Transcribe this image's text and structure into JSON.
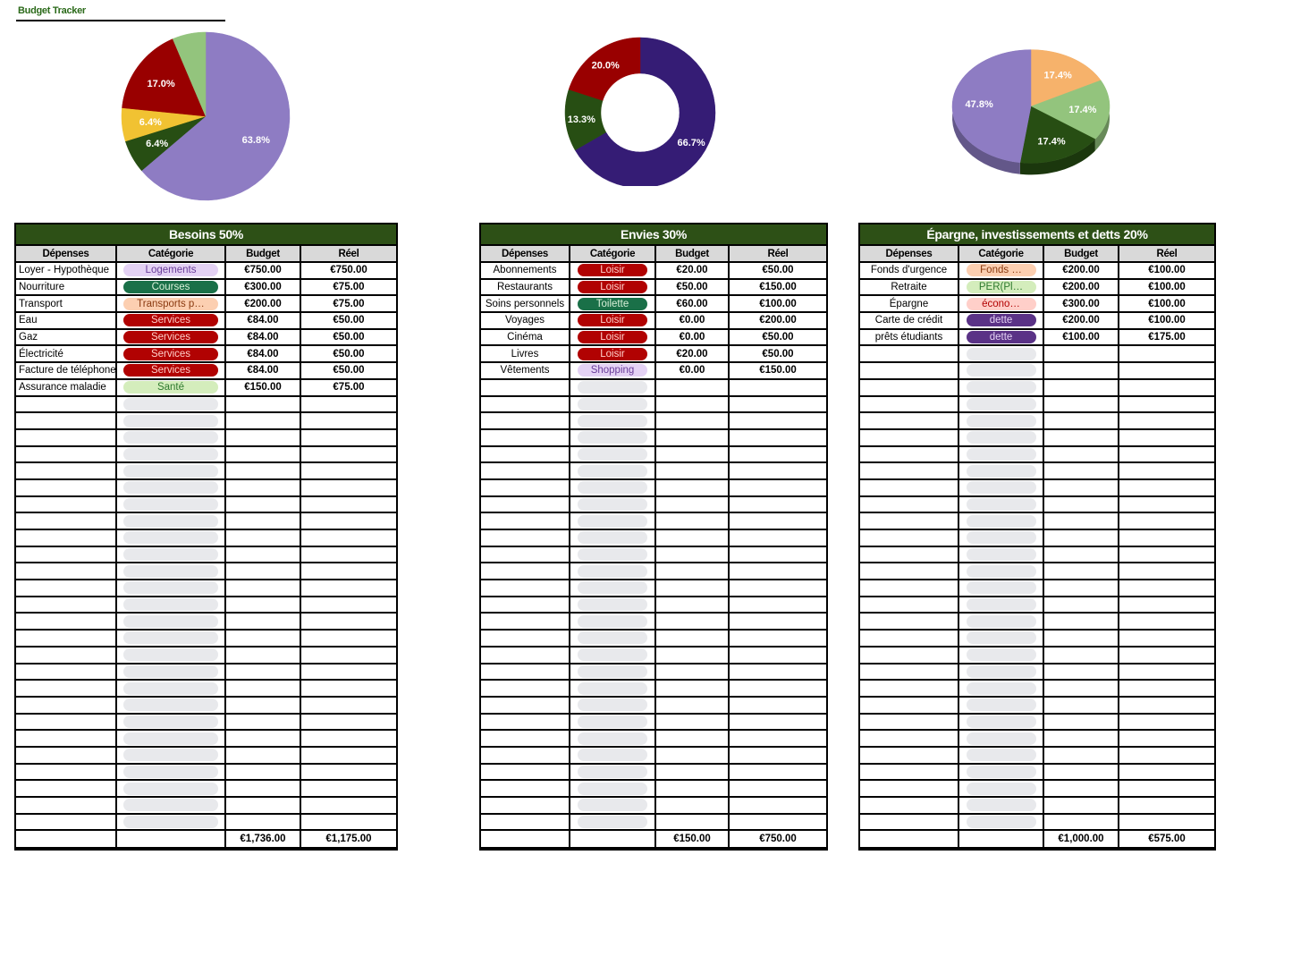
{
  "header": {
    "title": "Budget Tracker"
  },
  "chart_data": [
    {
      "type": "pie",
      "title": "Besoins",
      "categories": [
        "Logements",
        "Courses",
        "Transports publics",
        "Services",
        "Santé"
      ],
      "values": [
        63.8,
        6.4,
        6.4,
        17.0,
        6.4
      ],
      "labels": [
        "63.8%",
        "6.4%",
        "6.4%",
        "17.0%",
        ""
      ],
      "colors": [
        "#8e7cc3",
        "#274e13",
        "#f1c232",
        "#990000",
        "#93c47d"
      ]
    },
    {
      "type": "pie",
      "subtype": "donut",
      "title": "Envies",
      "categories": [
        "Loisir",
        "Toilette",
        "Shopping"
      ],
      "values": [
        66.7,
        13.3,
        20.0
      ],
      "labels": [
        "66.7%",
        "13.3%",
        "20.0%"
      ],
      "colors": [
        "#351c75",
        "#274e13",
        "#990000"
      ]
    },
    {
      "type": "pie",
      "subtype": "3d",
      "title": "Épargne, investissements et detts",
      "categories": [
        "Fonds d'urgence",
        "PER",
        "économies",
        "dette"
      ],
      "values": [
        17.4,
        17.4,
        17.4,
        47.8
      ],
      "labels": [
        "17.4%",
        "17.4%",
        "17.4%",
        "47.8%"
      ],
      "colors": [
        "#f6b26b",
        "#93c47d",
        "#274e13",
        "#8e7cc3"
      ]
    }
  ],
  "tables": {
    "besoins": {
      "title": "Besoins 50%",
      "columns": [
        "Dépenses",
        "Catégorie",
        "Budget",
        "Réel"
      ],
      "rows": [
        {
          "expense": "Loyer - Hypothèque",
          "category": "Logements",
          "budget": "€750.00",
          "actual": "€750.00"
        },
        {
          "expense": "Nourriture",
          "category": "Courses",
          "budget": "€300.00",
          "actual": "€75.00"
        },
        {
          "expense": "Transport",
          "category": "Transports p…",
          "budget": "€200.00",
          "actual": "€75.00"
        },
        {
          "expense": "Eau",
          "category": "Services",
          "budget": "€84.00",
          "actual": "€50.00"
        },
        {
          "expense": "Gaz",
          "category": "Services",
          "budget": "€84.00",
          "actual": "€50.00"
        },
        {
          "expense": "Électricité",
          "category": "Services",
          "budget": "€84.00",
          "actual": "€50.00"
        },
        {
          "expense": "Facture de téléphone",
          "category": "Services",
          "budget": "€84.00",
          "actual": "€50.00"
        },
        {
          "expense": "Assurance maladie",
          "category": "Santé",
          "budget": "€150.00",
          "actual": "€75.00"
        }
      ],
      "total": {
        "budget": "€1,736.00",
        "actual": "€1,175.00"
      }
    },
    "envies": {
      "title": "Envies  30%",
      "columns": [
        "Dépenses",
        "Catégorie",
        "Budget",
        "Réel"
      ],
      "rows": [
        {
          "expense": "Abonnements",
          "category": "Loisir",
          "budget": "€20.00",
          "actual": "€50.00"
        },
        {
          "expense": "Restaurants",
          "category": "Loisir",
          "budget": "€50.00",
          "actual": "€150.00"
        },
        {
          "expense": "Soins personnels",
          "category": "Toilette",
          "budget": "€60.00",
          "actual": "€100.00"
        },
        {
          "expense": "Voyages",
          "category": "Loisir",
          "budget": "€0.00",
          "actual": "€200.00"
        },
        {
          "expense": "Cinéma",
          "category": "Loisir",
          "budget": "€0.00",
          "actual": "€50.00"
        },
        {
          "expense": "Livres",
          "category": "Loisir",
          "budget": "€20.00",
          "actual": "€50.00"
        },
        {
          "expense": "Vêtements",
          "category": "Shopping",
          "budget": "€0.00",
          "actual": "€150.00"
        }
      ],
      "total": {
        "budget": "€150.00",
        "actual": "€750.00"
      }
    },
    "epargne": {
      "title": "Épargne,  investissements et detts 20%",
      "columns": [
        "Dépenses",
        "Catégorie",
        "Budget",
        "Réel"
      ],
      "rows": [
        {
          "expense": "Fonds d'urgence",
          "category": "Fonds …",
          "budget": "€200.00",
          "actual": "€100.00"
        },
        {
          "expense": "Retraite",
          "category": "PER(Pl…",
          "budget": "€200.00",
          "actual": "€100.00"
        },
        {
          "expense": "Épargne",
          "category": "écono…",
          "budget": "€300.00",
          "actual": "€100.00"
        },
        {
          "expense": "Carte de crédit",
          "category": "dette",
          "budget": "€200.00",
          "actual": "€100.00"
        },
        {
          "expense": "prêts étudiants",
          "category": "dette",
          "budget": "€100.00",
          "actual": "€175.00"
        }
      ],
      "total": {
        "budget": "€1,000.00",
        "actual": "€575.00"
      }
    }
  },
  "chip_styles": {
    "Logements": {
      "bg": "#e4d2f4",
      "fg": "#6a3d9a"
    },
    "Courses": {
      "bg": "#1a7048",
      "fg": "#d8f0d8"
    },
    "Transports p…": {
      "bg": "#fccfb1",
      "fg": "#8a3a10"
    },
    "Services": {
      "bg": "#b10202",
      "fg": "#ffcfc9"
    },
    "Santé": {
      "bg": "#d4edbc",
      "fg": "#2f7a2f"
    },
    "Loisir": {
      "bg": "#b10202",
      "fg": "#ffcfc9"
    },
    "Toilette": {
      "bg": "#1a7048",
      "fg": "#d8f0d8"
    },
    "Shopping": {
      "bg": "#e4d2f4",
      "fg": "#6a3d9a"
    },
    "Fonds …": {
      "bg": "#fccfb1",
      "fg": "#8a3a10"
    },
    "PER(Pl…": {
      "bg": "#d4edbc",
      "fg": "#2f7a2f"
    },
    "écono…": {
      "bg": "#ffcfc9",
      "fg": "#b10202"
    },
    "dette": {
      "bg": "#5a3286",
      "fg": "#e4d2f4"
    }
  },
  "layout": {
    "total_rows": 34
  }
}
